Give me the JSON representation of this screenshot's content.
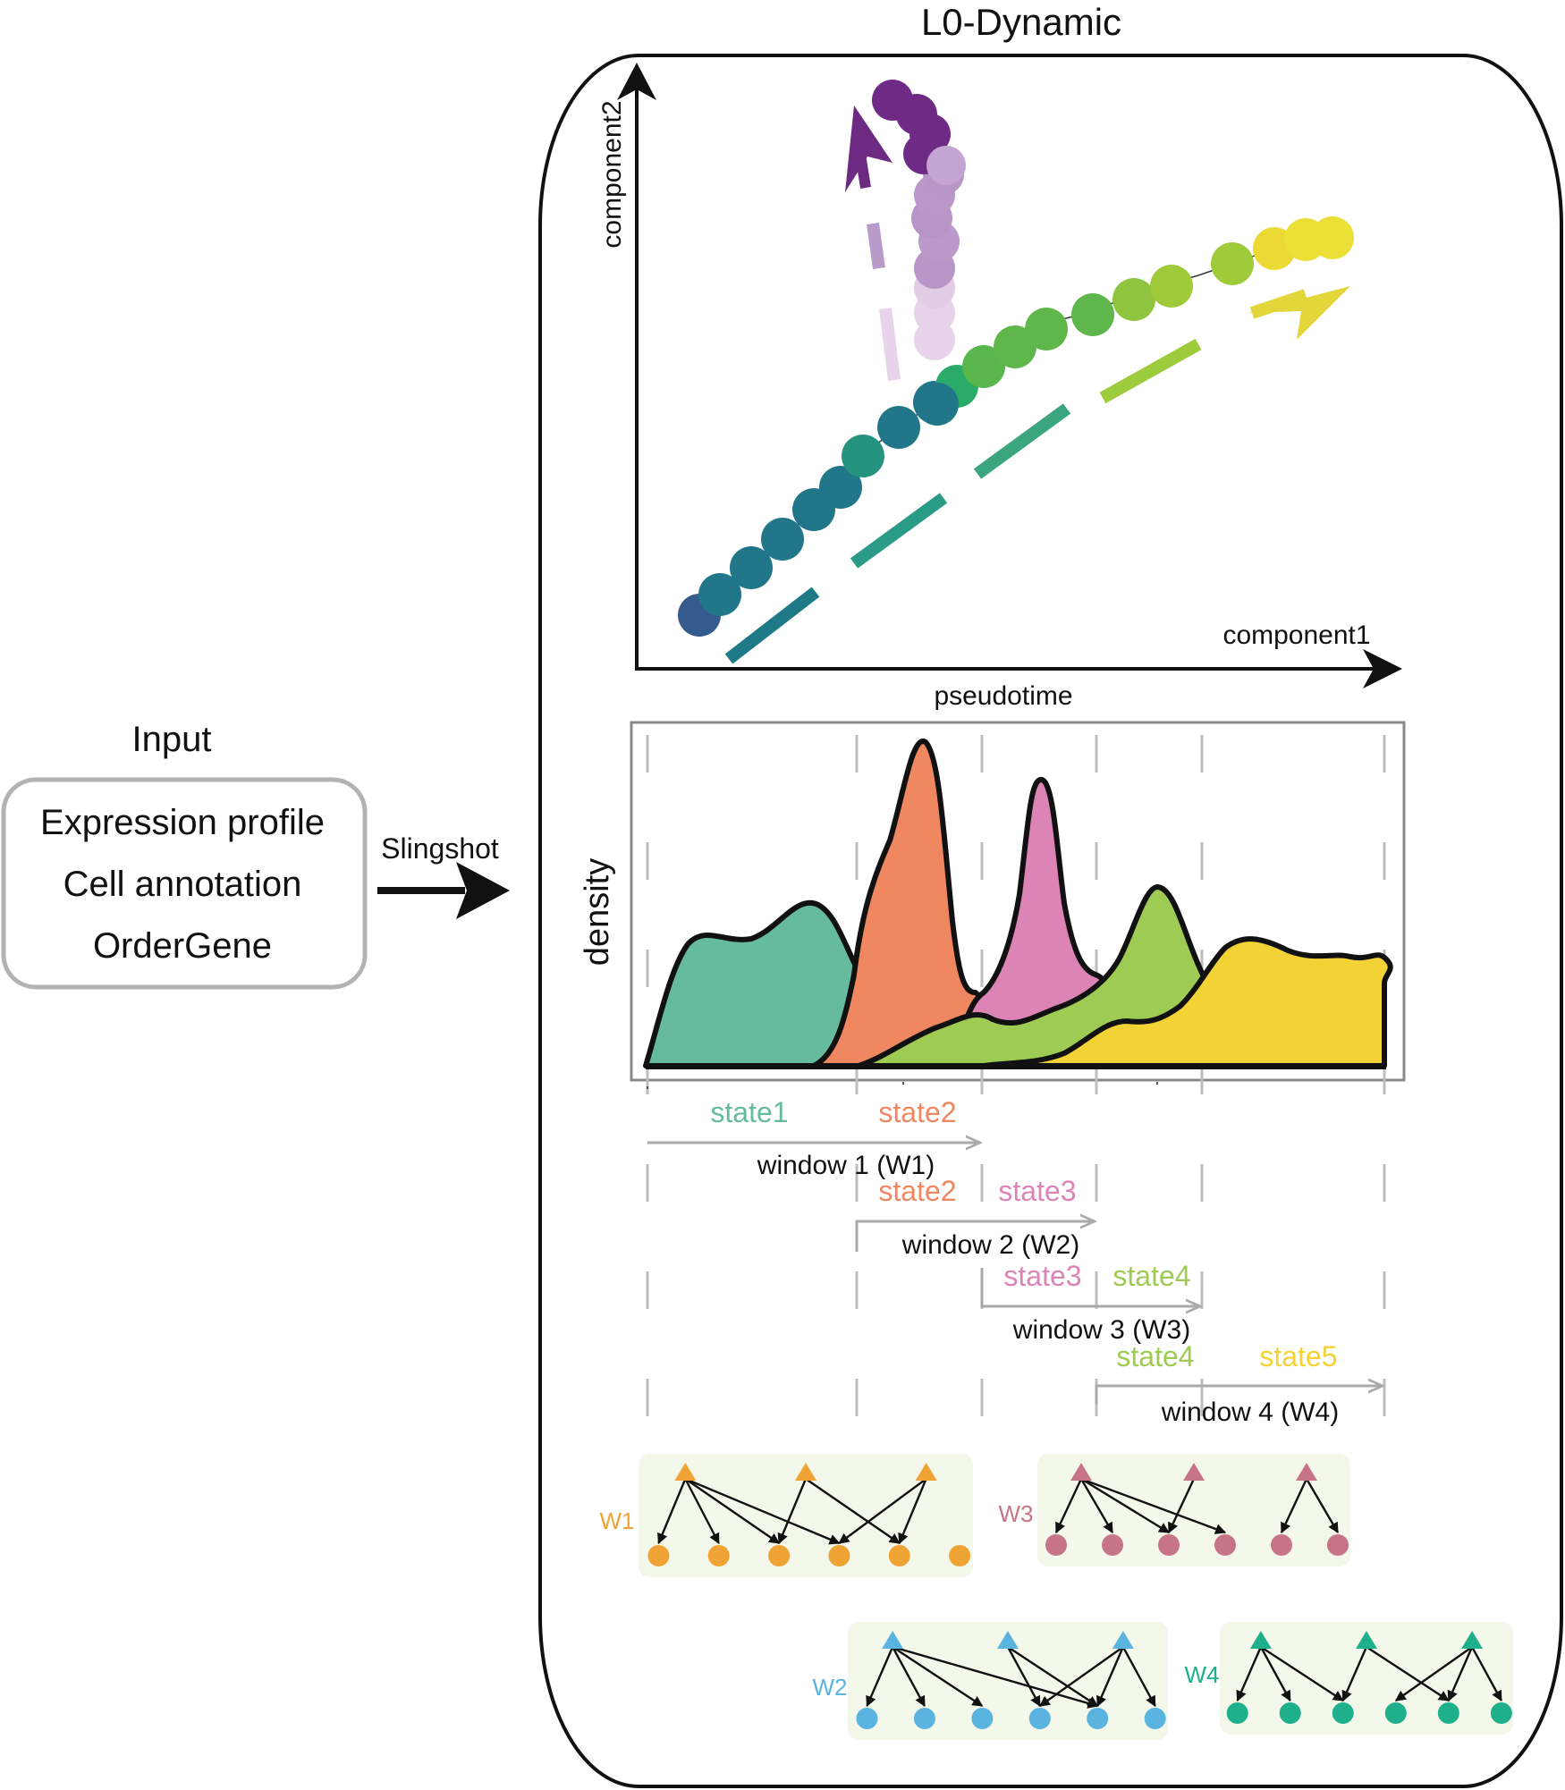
{
  "title": "L0-Dynamic",
  "input": {
    "heading": "Input",
    "items": [
      "Expression profile",
      "Cell annotation",
      "OrderGene"
    ],
    "arrow_label": "Slingshot"
  },
  "trajectory": {
    "y_label": "component2",
    "x_label": "component1"
  },
  "density_plot": {
    "x_label": "pseudotime",
    "y_label": "density",
    "states": [
      {
        "name": "state1",
        "color": "#66bb9e"
      },
      {
        "name": "state2",
        "color": "#ef8861"
      },
      {
        "name": "state3",
        "color": "#dd84b7"
      },
      {
        "name": "state4",
        "color": "#9ecb53"
      },
      {
        "name": "state5",
        "color": "#f3d236"
      }
    ]
  },
  "windows": [
    {
      "label": "window 1 (W1)",
      "states": [
        "state1",
        "state2"
      ],
      "state_colors": [
        "#66bb9e",
        "#ef8861"
      ]
    },
    {
      "label": "window 2 (W2)",
      "states": [
        "state2",
        "state3"
      ],
      "state_colors": [
        "#ef8861",
        "#dd84b7"
      ]
    },
    {
      "label": "window 3 (W3)",
      "states": [
        "state3",
        "state4"
      ],
      "state_colors": [
        "#dd84b7",
        "#9ecb53"
      ]
    },
    {
      "label": "window 4 (W4)",
      "states": [
        "state4",
        "state5"
      ],
      "state_colors": [
        "#9ecb53",
        "#f3d236"
      ]
    }
  ],
  "networks": [
    {
      "tag": "W1",
      "color": "#eea334"
    },
    {
      "tag": "W3",
      "color": "#c77487"
    },
    {
      "tag": "W2",
      "color": "#5bb4df"
    },
    {
      "tag": "W4",
      "color": "#1eb08a"
    }
  ]
}
